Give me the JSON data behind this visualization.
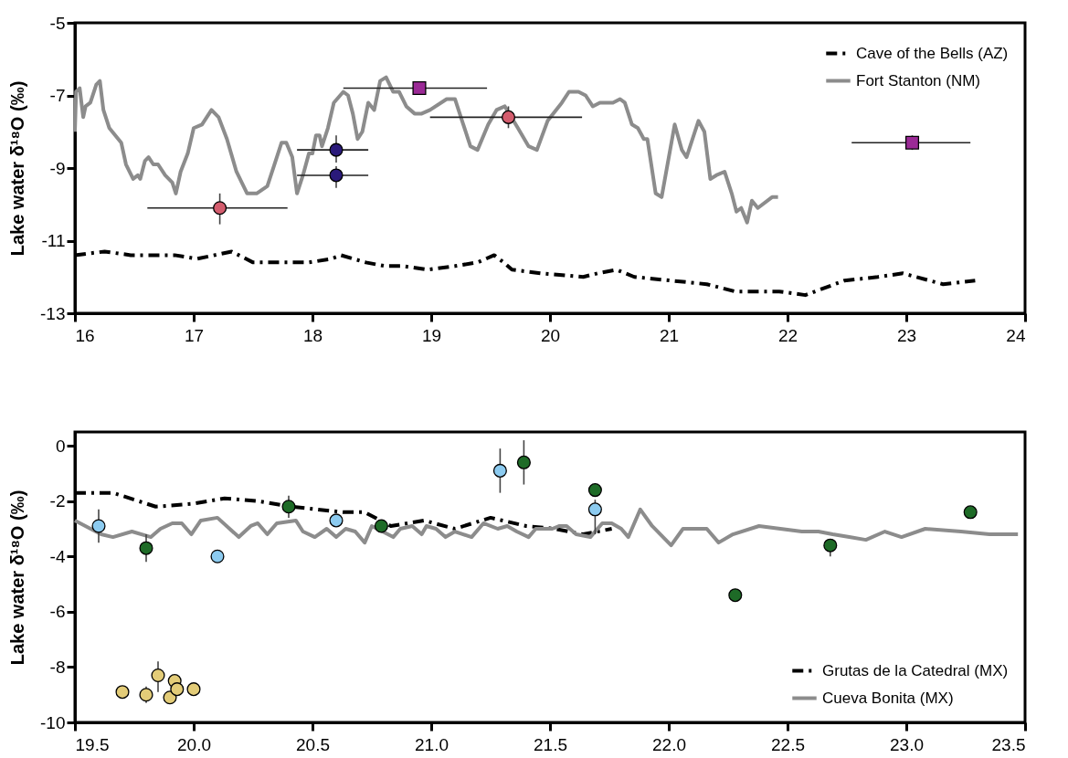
{
  "chart_data": [
    {
      "type": "line",
      "ylabel": "Lake water δ¹⁸O (‰)",
      "xlim": [
        16,
        24
      ],
      "xticks": [
        16,
        17,
        18,
        19,
        20,
        21,
        22,
        23,
        24
      ],
      "ylim": [
        -13,
        -5
      ],
      "yticks": [
        -13,
        -11,
        -9,
        -7,
        -5
      ],
      "legend": "top right",
      "series": [
        {
          "name": "Cave of the Bells (AZ)",
          "type": "line",
          "color": "#000000",
          "line_style": "dashdot",
          "x": [
            16.0,
            16.25,
            16.47,
            16.74,
            16.84,
            17.03,
            17.32,
            17.5,
            17.71,
            17.97,
            18.16,
            18.24,
            18.45,
            18.61,
            18.76,
            18.97,
            19.2,
            19.39,
            19.53,
            19.61,
            19.68,
            19.92,
            20.28,
            20.4,
            20.56,
            20.71,
            21.02,
            21.32,
            21.56,
            21.93,
            22.15,
            22.48,
            22.76,
            22.97,
            23.31,
            23.58
          ],
          "values": [
            -11.4,
            -11.3,
            -11.4,
            -11.4,
            -11.4,
            -11.5,
            -11.3,
            -11.6,
            -11.6,
            -11.6,
            -11.5,
            -11.4,
            -11.6,
            -11.7,
            -11.7,
            -11.8,
            -11.7,
            -11.6,
            -11.4,
            -11.6,
            -11.8,
            -11.9,
            -12.0,
            -11.9,
            -11.8,
            -12.0,
            -12.1,
            -12.2,
            -12.4,
            -12.4,
            -12.5,
            -12.1,
            -12.0,
            -11.9,
            -12.2,
            -12.1
          ]
        },
        {
          "name": "Fort Stanton (NM)",
          "type": "line",
          "color": "#8c8c8c",
          "line_style": "solid",
          "x": [
            16.0,
            16.01,
            16.04,
            16.07,
            16.09,
            16.13,
            16.18,
            16.21,
            16.24,
            16.29,
            16.34,
            16.39,
            16.43,
            16.49,
            16.53,
            16.55,
            16.59,
            16.62,
            16.66,
            16.7,
            16.76,
            16.82,
            16.85,
            16.89,
            16.95,
            17.0,
            17.07,
            17.15,
            17.21,
            17.28,
            17.36,
            17.45,
            17.53,
            17.62,
            17.68,
            17.74,
            17.78,
            17.83,
            17.87,
            17.92,
            17.97,
            18.0,
            18.03,
            18.06,
            18.08,
            18.13,
            18.18,
            18.26,
            18.3,
            18.34,
            18.38,
            18.42,
            18.47,
            18.52,
            18.57,
            18.62,
            18.68,
            18.73,
            18.79,
            18.86,
            18.92,
            18.99,
            19.13,
            19.2,
            19.26,
            19.33,
            19.39,
            19.48,
            19.55,
            19.62,
            19.73,
            19.82,
            19.89,
            19.98,
            20.1,
            20.16,
            20.24,
            20.3,
            20.36,
            20.42,
            20.53,
            20.59,
            20.63,
            20.69,
            20.74,
            20.79,
            20.82,
            20.89,
            20.94,
            21.05,
            21.11,
            21.15,
            21.25,
            21.3,
            21.35,
            21.4,
            21.47,
            21.53,
            21.57,
            21.61,
            21.66,
            21.7,
            21.75,
            21.87,
            21.92
          ],
          "values": [
            -8.0,
            -6.9,
            -6.8,
            -7.6,
            -7.3,
            -7.2,
            -6.7,
            -6.6,
            -7.4,
            -7.9,
            -8.1,
            -8.3,
            -8.9,
            -9.3,
            -9.2,
            -9.3,
            -8.8,
            -8.7,
            -8.9,
            -8.9,
            -9.2,
            -9.4,
            -9.7,
            -9.1,
            -8.6,
            -7.9,
            -7.8,
            -7.4,
            -7.6,
            -8.2,
            -9.1,
            -9.7,
            -9.7,
            -9.5,
            -8.9,
            -8.3,
            -8.3,
            -8.7,
            -9.7,
            -9.2,
            -8.6,
            -8.6,
            -8.1,
            -8.1,
            -8.4,
            -7.9,
            -7.2,
            -6.9,
            -7.0,
            -7.5,
            -8.2,
            -8.0,
            -7.2,
            -7.4,
            -6.6,
            -6.5,
            -6.9,
            -6.9,
            -7.3,
            -7.5,
            -7.5,
            -7.4,
            -7.1,
            -7.1,
            -7.7,
            -8.4,
            -8.5,
            -7.8,
            -7.4,
            -7.3,
            -7.9,
            -8.4,
            -8.5,
            -7.7,
            -7.2,
            -6.9,
            -6.9,
            -7.0,
            -7.3,
            -7.2,
            -7.2,
            -7.1,
            -7.2,
            -7.8,
            -7.9,
            -8.2,
            -8.2,
            -9.7,
            -9.8,
            -7.8,
            -8.5,
            -8.7,
            -7.7,
            -8.0,
            -9.3,
            -9.2,
            -9.1,
            -9.7,
            -10.2,
            -10.1,
            -10.5,
            -9.9,
            -10.1,
            -9.8,
            -9.8
          ]
        },
        {
          "type": "scatter",
          "color": "#d45d6e",
          "marker": "circle",
          "x": [
            17.22,
            19.65
          ],
          "values": [
            -10.1,
            -7.6
          ],
          "errors": [
            [
              -10.55,
              -9.7
            ],
            [
              -7.9,
              -7.3
            ]
          ],
          "xerrors": [
            [
              16.61,
              17.79
            ],
            [
              18.99,
              20.27
            ]
          ]
        },
        {
          "type": "scatter",
          "color": "#2a1a7a",
          "marker": "circle",
          "x": [
            18.2,
            18.2
          ],
          "values": [
            -8.5,
            -9.2
          ],
          "errors": [
            [
              -8.85,
              -8.1
            ],
            [
              -9.55,
              -8.95
            ]
          ],
          "xerrors": [
            [
              17.87,
              18.47
            ],
            [
              17.87,
              18.47
            ]
          ]
        },
        {
          "type": "scatter",
          "color": "#9b2a96",
          "marker": "square",
          "x": [
            18.9,
            23.05
          ],
          "values": [
            -6.8,
            -8.3
          ],
          "errors": [
            [
              -6.95,
              -6.65
            ],
            [
              -8.5,
              -8.1
            ]
          ],
          "xerrors": [
            [
              18.26,
              19.47
            ],
            [
              22.54,
              23.54
            ]
          ]
        }
      ]
    },
    {
      "type": "line",
      "ylabel": "Lake water δ¹⁸O (‰)",
      "xlim": [
        19.5,
        23.5
      ],
      "xticks": [
        19.5,
        {
          "value": 20,
          "label": "20.0"
        },
        20.5,
        {
          "value": 21,
          "label": "21.0"
        },
        21.5,
        {
          "value": 22,
          "label": "22.0"
        },
        22.5,
        {
          "value": 23,
          "label": "23.0"
        },
        23.5
      ],
      "ylim": [
        -10,
        0.5
      ],
      "yticks": [
        -10,
        -8,
        -6,
        -4,
        -2,
        0
      ],
      "legend": "bottom right",
      "series": [
        {
          "name": "Grutas de la Catedral (MX)",
          "type": "line",
          "color": "#000000",
          "line_style": "dashdot",
          "x": [
            19.5,
            19.66,
            19.84,
            19.99,
            20.13,
            20.27,
            20.41,
            20.63,
            20.72,
            20.83,
            20.97,
            21.1,
            21.25,
            21.4,
            21.52,
            21.64,
            21.76
          ],
          "values": [
            -1.7,
            -1.7,
            -2.2,
            -2.1,
            -1.9,
            -2.0,
            -2.2,
            -2.4,
            -2.4,
            -2.9,
            -2.7,
            -3.0,
            -2.6,
            -2.9,
            -3.0,
            -3.2,
            -3.0
          ]
        },
        {
          "name": "Cueva Bonita (MX)",
          "type": "line",
          "color": "#8c8c8c",
          "line_style": "solid",
          "x": [
            19.5,
            19.61,
            19.66,
            19.74,
            19.82,
            19.86,
            19.91,
            19.95,
            19.99,
            20.03,
            20.1,
            20.19,
            20.24,
            20.27,
            20.31,
            20.35,
            20.43,
            20.46,
            20.51,
            20.56,
            20.6,
            20.64,
            20.68,
            20.72,
            20.75,
            20.84,
            20.87,
            20.92,
            20.96,
            20.98,
            21.02,
            21.06,
            21.1,
            21.17,
            21.22,
            21.28,
            21.32,
            21.36,
            21.41,
            21.44,
            21.51,
            21.54,
            21.57,
            21.61,
            21.67,
            21.72,
            21.76,
            21.8,
            21.83,
            21.88,
            21.93,
            22.01,
            22.06,
            22.12,
            22.16,
            22.21,
            22.27,
            22.38,
            22.56,
            22.63,
            22.69,
            22.76,
            22.83,
            22.91,
            22.98,
            23.08,
            23.23,
            23.35,
            23.42,
            23.47
          ],
          "values": [
            -2.7,
            -3.2,
            -3.3,
            -3.1,
            -3.3,
            -3.0,
            -2.8,
            -2.8,
            -3.2,
            -2.7,
            -2.6,
            -3.3,
            -2.9,
            -2.8,
            -3.2,
            -2.8,
            -2.7,
            -3.1,
            -3.3,
            -3.0,
            -3.3,
            -3.0,
            -3.1,
            -3.5,
            -2.9,
            -3.3,
            -3.0,
            -2.9,
            -3.2,
            -2.9,
            -3.0,
            -3.3,
            -3.1,
            -3.3,
            -2.8,
            -3.0,
            -2.9,
            -3.1,
            -3.3,
            -3.0,
            -3.0,
            -2.9,
            -2.9,
            -3.2,
            -3.3,
            -2.8,
            -2.8,
            -3.0,
            -3.3,
            -2.3,
            -2.9,
            -3.6,
            -3.0,
            -3.0,
            -3.0,
            -3.5,
            -3.2,
            -2.9,
            -3.1,
            -3.1,
            -3.2,
            -3.3,
            -3.4,
            -3.1,
            -3.3,
            -3.0,
            -3.1,
            -3.2,
            -3.2,
            -3.2
          ]
        },
        {
          "type": "scatter",
          "color": "#8ccbf0",
          "marker": "circle",
          "x": [
            19.6,
            20.1,
            20.6,
            21.29,
            21.69
          ],
          "values": [
            -2.9,
            -4.0,
            -2.7,
            -0.9,
            -2.3
          ],
          "errors": [
            [
              -3.5,
              -2.3
            ],
            null,
            null,
            [
              -1.7,
              -0.1
            ],
            [
              -3.2,
              -1.95
            ]
          ]
        },
        {
          "type": "scatter",
          "color": "#1e6b27",
          "marker": "circle",
          "x": [
            19.8,
            20.4,
            20.79,
            21.39,
            21.69,
            22.28,
            22.68,
            23.27
          ],
          "values": [
            -3.7,
            -2.2,
            -2.9,
            -0.6,
            -1.6,
            -5.4,
            -3.6,
            -2.4
          ],
          "errors": [
            [
              -4.2,
              -3.2
            ],
            [
              -2.6,
              -1.8
            ],
            null,
            [
              -1.4,
              0.2
            ],
            null,
            null,
            [
              -4.0,
              -3.5
            ],
            null
          ]
        },
        {
          "type": "scatter",
          "color": "#e3cc78",
          "marker": "circle",
          "x": [
            19.7,
            19.8,
            19.85,
            19.9,
            19.92,
            19.93,
            20.0
          ],
          "values": [
            -8.9,
            -9.0,
            -8.3,
            -9.1,
            -8.5,
            -8.8,
            -8.8
          ],
          "errors": [
            null,
            [
              -9.3,
              -8.7
            ],
            [
              -8.9,
              -7.8
            ],
            null,
            [
              -8.8,
              -8.3
            ],
            null,
            null
          ]
        }
      ]
    }
  ]
}
